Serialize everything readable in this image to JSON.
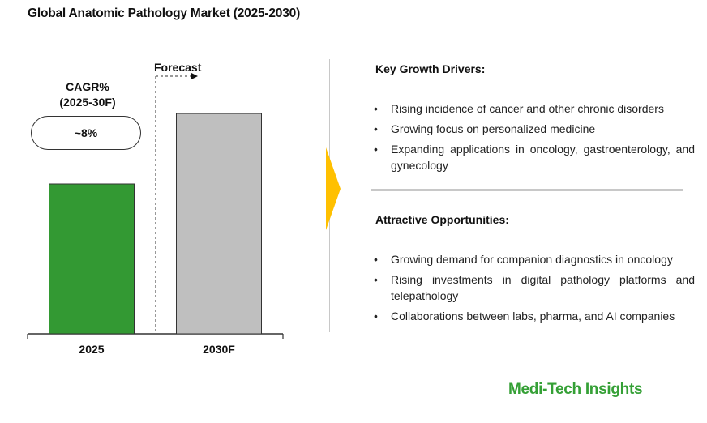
{
  "title": "Global Anatomic Pathology Market (2025-2030)",
  "cagr": {
    "label_line1": "CAGR%",
    "label_line2": "(2025-30F)",
    "value": "~8%"
  },
  "forecast_label": "Forecast",
  "chart_data": {
    "type": "bar",
    "title": "Global Anatomic Pathology Market (2025-2030)",
    "categories": [
      "2025",
      "2030F"
    ],
    "values": [
      1.0,
      1.47
    ],
    "value_note": "relative bar heights, no y-axis scale shown",
    "colors": [
      "#339933",
      "#BFBFBF"
    ],
    "forecast_from_index": 1,
    "grid": false,
    "legend": "none"
  },
  "key_growth_drivers": {
    "heading": "Key Growth Drivers:",
    "items": [
      "Rising incidence of cancer and other chronic disorders",
      "Growing focus on personalized medicine",
      "Expanding applications in oncology, gastroenterology, and gynecology"
    ]
  },
  "attractive_opportunities": {
    "heading": "Attractive Opportunities:",
    "items": [
      "Growing demand for companion diagnostics in oncology",
      "Rising investments in digital pathology platforms and telepathology",
      "Collaborations between labs, pharma, and AI companies"
    ]
  },
  "brand": "Medi-Tech Insights",
  "colors": {
    "accent_arrow": "#FFC000",
    "brand_green": "#35A036"
  }
}
